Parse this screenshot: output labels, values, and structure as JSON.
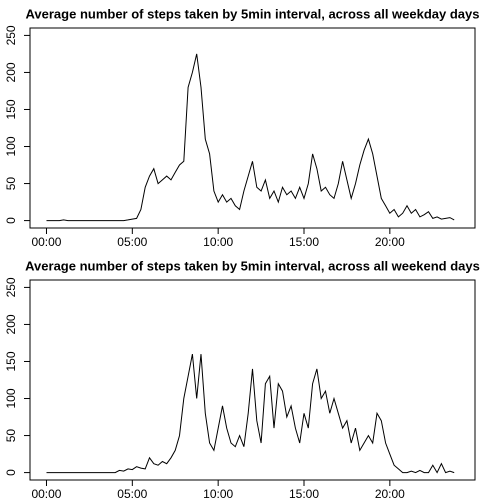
{
  "chart_data": [
    {
      "type": "line",
      "title": "Average number of steps taken by 5min interval, across all weekday days",
      "color": "#000000",
      "x": [
        0,
        0.25,
        0.5,
        0.75,
        1,
        1.25,
        1.5,
        1.75,
        2,
        2.25,
        2.5,
        2.75,
        3,
        3.25,
        3.5,
        3.75,
        4,
        4.25,
        4.5,
        4.75,
        5,
        5.25,
        5.5,
        5.75,
        6,
        6.25,
        6.5,
        6.75,
        7,
        7.25,
        7.5,
        7.75,
        8,
        8.25,
        8.5,
        8.75,
        9,
        9.25,
        9.5,
        9.75,
        10,
        10.25,
        10.5,
        10.75,
        11,
        11.25,
        11.5,
        11.75,
        12,
        12.25,
        12.5,
        12.75,
        13,
        13.25,
        13.5,
        13.75,
        14,
        14.25,
        14.5,
        14.75,
        15,
        15.25,
        15.5,
        15.75,
        16,
        16.25,
        16.5,
        16.75,
        17,
        17.25,
        17.5,
        17.75,
        18,
        18.25,
        18.5,
        18.75,
        19,
        19.25,
        19.5,
        19.75,
        20,
        20.25,
        20.5,
        20.75,
        21,
        21.25,
        21.5,
        21.75,
        22,
        22.25,
        22.5,
        22.75,
        23,
        23.25,
        23.5,
        23.75
      ],
      "values": [
        0,
        0,
        0,
        0,
        1,
        0,
        0,
        0,
        0,
        0,
        0,
        0,
        0,
        0,
        0,
        0,
        0,
        0,
        0,
        1,
        2,
        3,
        15,
        45,
        60,
        70,
        50,
        55,
        60,
        55,
        65,
        75,
        80,
        180,
        200,
        225,
        180,
        110,
        90,
        40,
        25,
        35,
        25,
        30,
        20,
        15,
        40,
        60,
        80,
        45,
        40,
        55,
        30,
        40,
        25,
        45,
        35,
        40,
        30,
        45,
        30,
        50,
        90,
        70,
        40,
        45,
        35,
        30,
        50,
        80,
        55,
        30,
        50,
        75,
        95,
        110,
        90,
        60,
        30,
        20,
        10,
        15,
        5,
        10,
        20,
        10,
        15,
        5,
        8,
        12,
        3,
        5,
        2,
        3,
        4,
        1
      ],
      "xlim": [
        -0.96,
        24.96
      ],
      "xticks": [
        {
          "value": 0,
          "label": "00:00"
        },
        {
          "value": 5,
          "label": "05:00"
        },
        {
          "value": 10,
          "label": "10:00"
        },
        {
          "value": 15,
          "label": "15:00"
        },
        {
          "value": 20,
          "label": "20:00"
        }
      ],
      "ylim": [
        -10,
        260
      ],
      "yticks": [
        0,
        50,
        100,
        150,
        200,
        250
      ]
    },
    {
      "type": "line",
      "title": "Average number of steps taken by 5min interval, across all weekend days",
      "color": "#000000",
      "x": [
        0,
        0.25,
        0.5,
        0.75,
        1,
        1.25,
        1.5,
        1.75,
        2,
        2.25,
        2.5,
        2.75,
        3,
        3.25,
        3.5,
        3.75,
        4,
        4.25,
        4.5,
        4.75,
        5,
        5.25,
        5.5,
        5.75,
        6,
        6.25,
        6.5,
        6.75,
        7,
        7.25,
        7.5,
        7.75,
        8,
        8.25,
        8.5,
        8.75,
        9,
        9.25,
        9.5,
        9.75,
        10,
        10.25,
        10.5,
        10.75,
        11,
        11.25,
        11.5,
        11.75,
        12,
        12.25,
        12.5,
        12.75,
        13,
        13.25,
        13.5,
        13.75,
        14,
        14.25,
        14.5,
        14.75,
        15,
        15.25,
        15.5,
        15.75,
        16,
        16.25,
        16.5,
        16.75,
        17,
        17.25,
        17.5,
        17.75,
        18,
        18.25,
        18.5,
        18.75,
        19,
        19.25,
        19.5,
        19.75,
        20,
        20.25,
        20.5,
        20.75,
        21,
        21.25,
        21.5,
        21.75,
        22,
        22.25,
        22.5,
        22.75,
        23,
        23.25,
        23.5,
        23.75
      ],
      "values": [
        0,
        0,
        0,
        0,
        0,
        0,
        0,
        0,
        0,
        0,
        0,
        0,
        0,
        0,
        0,
        0,
        0,
        3,
        2,
        5,
        4,
        8,
        6,
        5,
        20,
        12,
        10,
        15,
        12,
        20,
        30,
        50,
        100,
        130,
        160,
        100,
        160,
        80,
        40,
        30,
        60,
        90,
        60,
        40,
        35,
        50,
        35,
        80,
        140,
        70,
        40,
        120,
        130,
        60,
        120,
        110,
        75,
        90,
        60,
        40,
        80,
        60,
        120,
        140,
        100,
        110,
        80,
        100,
        80,
        60,
        70,
        40,
        60,
        30,
        40,
        50,
        40,
        80,
        70,
        40,
        25,
        10,
        5,
        0,
        0,
        2,
        0,
        3,
        0,
        0,
        10,
        0,
        12,
        0,
        2,
        0
      ],
      "xlim": [
        -0.96,
        24.96
      ],
      "xticks": [
        {
          "value": 0,
          "label": "00:00"
        },
        {
          "value": 5,
          "label": "05:00"
        },
        {
          "value": 10,
          "label": "10:00"
        },
        {
          "value": 15,
          "label": "15:00"
        },
        {
          "value": 20,
          "label": "20:00"
        }
      ],
      "ylim": [
        -10,
        260
      ],
      "yticks": [
        0,
        50,
        100,
        150,
        200,
        250
      ]
    }
  ]
}
